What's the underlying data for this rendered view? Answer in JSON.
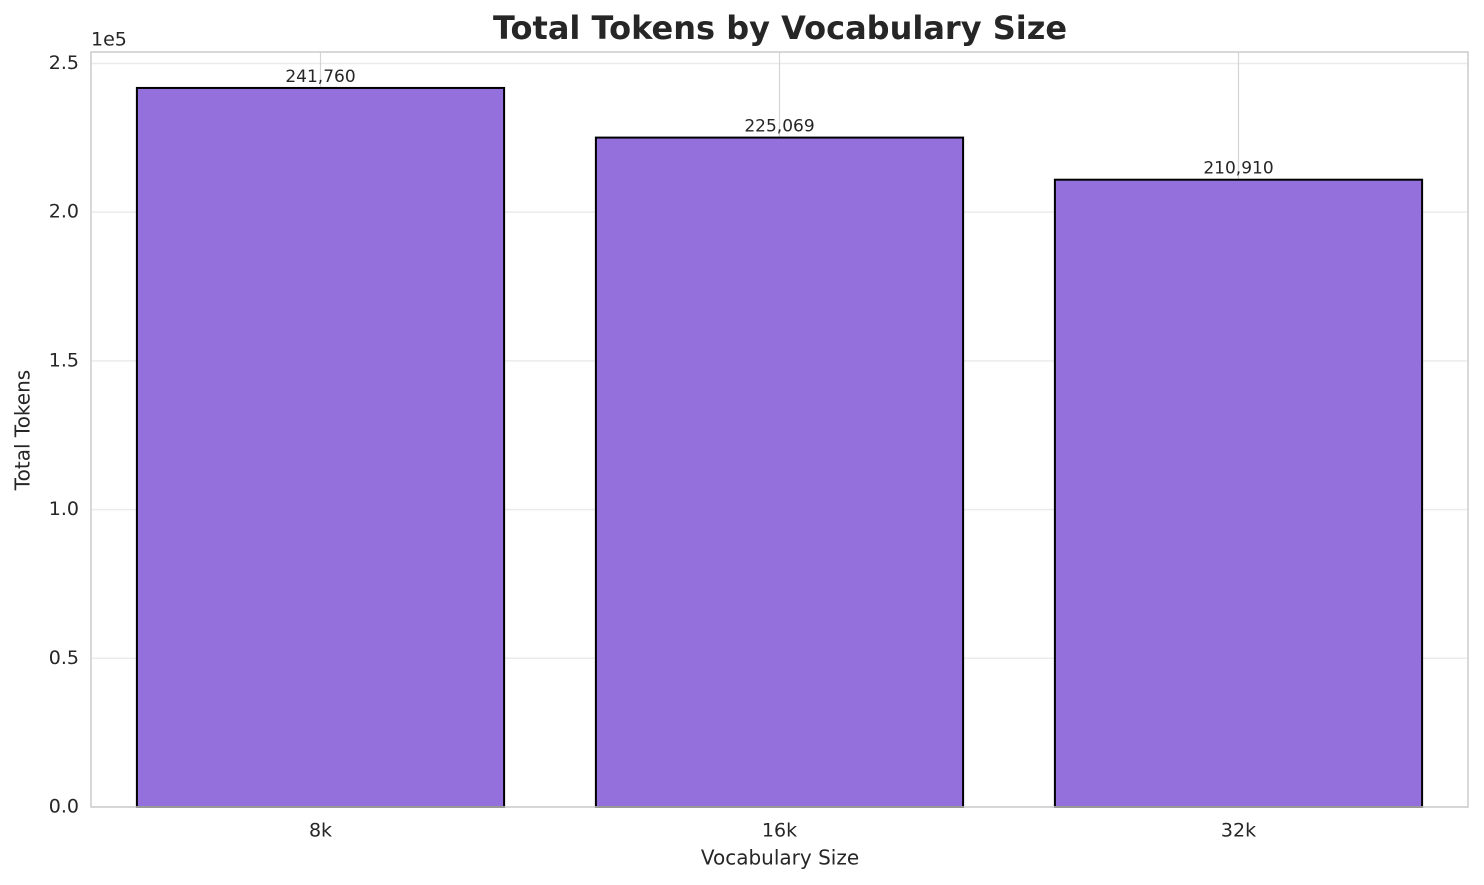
{
  "chart_data": {
    "type": "bar",
    "title": "Total Tokens by Vocabulary Size",
    "x_label": "Vocabulary Size",
    "y_label": "Total Tokens",
    "y_offset_label": "1e5",
    "categories": [
      "8k",
      "16k",
      "32k"
    ],
    "values": [
      241760,
      225069,
      210910
    ],
    "value_labels": [
      "241,760",
      "225,069",
      "210,910"
    ],
    "color": "#9370db",
    "edge_color": "#000000",
    "ylim": [
      0,
      253848
    ],
    "yticks": [
      {
        "value": 0,
        "label": "0.0"
      },
      {
        "value": 50000,
        "label": "0.5"
      },
      {
        "value": 100000,
        "label": "1.0"
      },
      {
        "value": 150000,
        "label": "1.5"
      },
      {
        "value": 200000,
        "label": "2.0"
      },
      {
        "value": 250000,
        "label": "2.5"
      }
    ],
    "grid": true
  }
}
